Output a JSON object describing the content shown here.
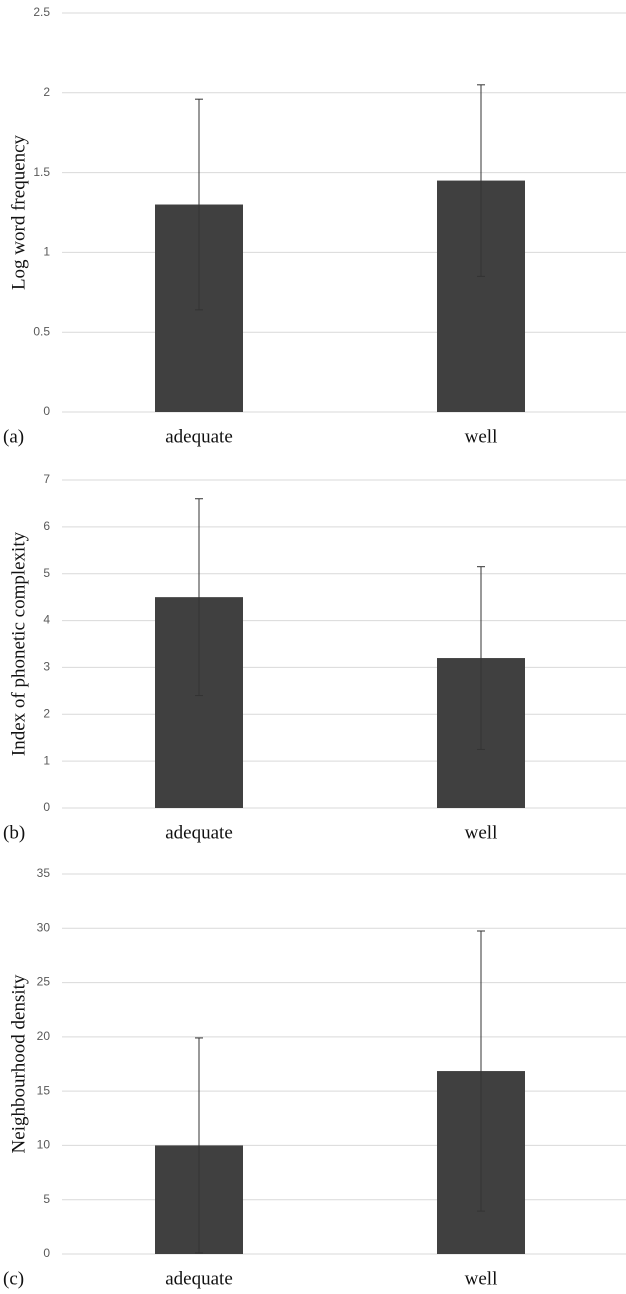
{
  "chart_data": [
    {
      "type": "bar",
      "label": "(a)",
      "y_label": "Log word frequency",
      "categories": [
        "adequate",
        "well"
      ],
      "values": [
        1.3,
        1.45
      ],
      "errors": [
        0.66,
        0.6
      ],
      "color": "#404040",
      "ylim": [
        0,
        2.5
      ],
      "yticks": [
        0,
        0.5,
        1,
        1.5,
        2,
        2.5
      ],
      "grid": true
    },
    {
      "type": "bar",
      "label": "(b)",
      "y_label": "Index of phonetic complexity",
      "categories": [
        "adequate",
        "well"
      ],
      "values": [
        4.5,
        3.2
      ],
      "errors": [
        2.1,
        1.95
      ],
      "color": "#404040",
      "ylim": [
        0,
        7
      ],
      "yticks": [
        0,
        1,
        2,
        3,
        4,
        5,
        6,
        7
      ],
      "grid": true
    },
    {
      "type": "bar",
      "label": "(c)",
      "y_label": "Neighbourhood density",
      "categories": [
        "adequate",
        "well"
      ],
      "values": [
        10,
        16.85
      ],
      "errors": [
        9.9,
        12.9
      ],
      "color": "#404040",
      "ylim": [
        0,
        35
      ],
      "yticks": [
        0,
        5,
        10,
        15,
        20,
        25,
        30,
        35
      ],
      "grid": true
    }
  ]
}
